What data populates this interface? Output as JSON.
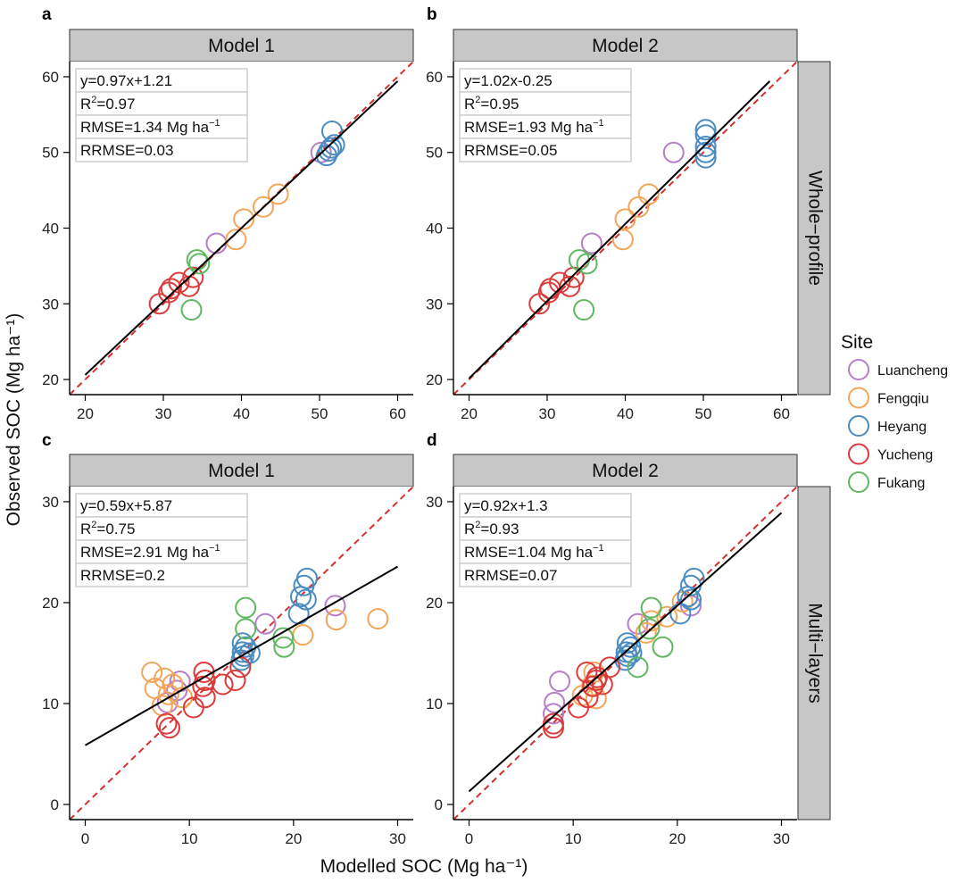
{
  "figure": {
    "x_title": "Modelled SOC (Mg ha⁻¹)",
    "y_title": "Observed SOC (Mg ha⁻¹)",
    "row_strips": [
      "Whole−profile",
      "Multi−layers"
    ]
  },
  "legend": {
    "title": "Site",
    "items": [
      {
        "label": "Luancheng",
        "color": "#b77dc9"
      },
      {
        "label": "Fengqiu",
        "color": "#f2a65a"
      },
      {
        "label": "Heyang",
        "color": "#4a8bc2"
      },
      {
        "label": "Yucheng",
        "color": "#dc3b3b"
      },
      {
        "label": "Fukang",
        "color": "#5fb85f"
      }
    ]
  },
  "chart_data": [
    {
      "type": "scatter",
      "panel_label": "a",
      "strip": "Model 1",
      "xlim": [
        18,
        62
      ],
      "ylim": [
        18,
        62
      ],
      "xticks": [
        20,
        30,
        40,
        50,
        60
      ],
      "yticks": [
        20,
        30,
        40,
        50,
        60
      ],
      "fit": {
        "slope": 0.97,
        "intercept": 1.21,
        "x_range": [
          20,
          60
        ]
      },
      "stats": {
        "eq": "y=0.97x+1.21",
        "r2": "0.97",
        "rmse": "1.34 Mg ha",
        "rrmse": "RRMSE=0.03"
      },
      "points": [
        {
          "site": "Luancheng",
          "x": 50.2,
          "y": 50.0
        },
        {
          "site": "Luancheng",
          "x": 36.8,
          "y": 38.0
        },
        {
          "site": "Fengqiu",
          "x": 39.3,
          "y": 38.5
        },
        {
          "site": "Fengqiu",
          "x": 40.3,
          "y": 41.2
        },
        {
          "site": "Fengqiu",
          "x": 42.8,
          "y": 42.8
        },
        {
          "site": "Fengqiu",
          "x": 44.7,
          "y": 44.5
        },
        {
          "site": "Heyang",
          "x": 51.6,
          "y": 52.8
        },
        {
          "site": "Heyang",
          "x": 51.9,
          "y": 51.0
        },
        {
          "site": "Heyang",
          "x": 51.5,
          "y": 50.6
        },
        {
          "site": "Heyang",
          "x": 50.9,
          "y": 49.6
        },
        {
          "site": "Heyang",
          "x": 51.2,
          "y": 50.2
        },
        {
          "site": "Yucheng",
          "x": 29.5,
          "y": 30.0
        },
        {
          "site": "Yucheng",
          "x": 30.7,
          "y": 31.5
        },
        {
          "site": "Yucheng",
          "x": 31.0,
          "y": 32.0
        },
        {
          "site": "Yucheng",
          "x": 32.0,
          "y": 32.8
        },
        {
          "site": "Yucheng",
          "x": 33.3,
          "y": 32.3
        },
        {
          "site": "Yucheng",
          "x": 33.8,
          "y": 33.5
        },
        {
          "site": "Fukang",
          "x": 34.3,
          "y": 35.8
        },
        {
          "site": "Fukang",
          "x": 34.6,
          "y": 35.3
        },
        {
          "site": "Fukang",
          "x": 33.6,
          "y": 29.2
        }
      ]
    },
    {
      "type": "scatter",
      "panel_label": "b",
      "strip": "Model 2",
      "xlim": [
        18,
        62
      ],
      "ylim": [
        18,
        62
      ],
      "xticks": [
        20,
        30,
        40,
        50,
        60
      ],
      "yticks": [
        20,
        30,
        40,
        50,
        60
      ],
      "fit": {
        "slope": 1.02,
        "intercept": -0.25,
        "x_range": [
          20,
          58.5
        ]
      },
      "stats": {
        "eq": "y=1.02x-0.25",
        "r2": "0.95",
        "rmse": "1.93 Mg ha",
        "rrmse": "RRMSE=0.05"
      },
      "points": [
        {
          "site": "Luancheng",
          "x": 46.2,
          "y": 50.0
        },
        {
          "site": "Luancheng",
          "x": 35.7,
          "y": 38.0
        },
        {
          "site": "Fengqiu",
          "x": 39.7,
          "y": 38.5
        },
        {
          "site": "Fengqiu",
          "x": 40.0,
          "y": 41.2
        },
        {
          "site": "Fengqiu",
          "x": 41.7,
          "y": 42.8
        },
        {
          "site": "Fengqiu",
          "x": 43.0,
          "y": 44.5
        },
        {
          "site": "Heyang",
          "x": 50.3,
          "y": 53.0
        },
        {
          "site": "Heyang",
          "x": 50.3,
          "y": 52.3
        },
        {
          "site": "Heyang",
          "x": 50.3,
          "y": 50.8
        },
        {
          "site": "Heyang",
          "x": 50.3,
          "y": 50.0
        },
        {
          "site": "Heyang",
          "x": 50.3,
          "y": 49.3
        },
        {
          "site": "Yucheng",
          "x": 29.0,
          "y": 30.0
        },
        {
          "site": "Yucheng",
          "x": 30.2,
          "y": 31.5
        },
        {
          "site": "Yucheng",
          "x": 30.4,
          "y": 32.0
        },
        {
          "site": "Yucheng",
          "x": 31.6,
          "y": 32.8
        },
        {
          "site": "Yucheng",
          "x": 32.9,
          "y": 32.3
        },
        {
          "site": "Yucheng",
          "x": 33.4,
          "y": 33.5
        },
        {
          "site": "Fukang",
          "x": 34.1,
          "y": 35.8
        },
        {
          "site": "Fukang",
          "x": 35.1,
          "y": 35.3
        },
        {
          "site": "Fukang",
          "x": 34.7,
          "y": 29.2
        }
      ]
    },
    {
      "type": "scatter",
      "panel_label": "c",
      "strip": "Model 1",
      "xlim": [
        -1.5,
        31.5
      ],
      "ylim": [
        -1.5,
        31.5
      ],
      "xticks": [
        0,
        10,
        20,
        30
      ],
      "yticks": [
        0,
        10,
        20,
        30
      ],
      "fit": {
        "slope": 0.59,
        "intercept": 5.87,
        "x_range": [
          0,
          30
        ]
      },
      "stats": {
        "eq": "y=0.59x+5.87",
        "r2": "0.75",
        "rmse": "2.91 Mg ha",
        "rrmse": "RRMSE=0.2"
      },
      "points": [
        {
          "site": "Luancheng",
          "x": 24.0,
          "y": 19.7
        },
        {
          "site": "Luancheng",
          "x": 17.3,
          "y": 17.9
        },
        {
          "site": "Luancheng",
          "x": 9.1,
          "y": 12.2
        },
        {
          "site": "Luancheng",
          "x": 7.9,
          "y": 10.1
        },
        {
          "site": "Luancheng",
          "x": 8.8,
          "y": 11.3
        },
        {
          "site": "Fengqiu",
          "x": 28.1,
          "y": 18.4
        },
        {
          "site": "Fengqiu",
          "x": 24.1,
          "y": 18.3
        },
        {
          "site": "Fengqiu",
          "x": 20.9,
          "y": 16.8
        },
        {
          "site": "Fengqiu",
          "x": 6.4,
          "y": 13.1
        },
        {
          "site": "Fengqiu",
          "x": 7.6,
          "y": 12.5
        },
        {
          "site": "Fengqiu",
          "x": 6.7,
          "y": 11.5
        },
        {
          "site": "Fengqiu",
          "x": 8.4,
          "y": 11.9
        },
        {
          "site": "Fengqiu",
          "x": 8.0,
          "y": 10.9
        },
        {
          "site": "Fengqiu",
          "x": 9.3,
          "y": 10.6
        },
        {
          "site": "Fengqiu",
          "x": 7.4,
          "y": 9.8
        },
        {
          "site": "Heyang",
          "x": 21.3,
          "y": 22.4
        },
        {
          "site": "Heyang",
          "x": 21.0,
          "y": 21.7
        },
        {
          "site": "Heyang",
          "x": 20.7,
          "y": 20.6
        },
        {
          "site": "Heyang",
          "x": 21.2,
          "y": 20.3
        },
        {
          "site": "Heyang",
          "x": 20.5,
          "y": 18.9
        },
        {
          "site": "Heyang",
          "x": 15.1,
          "y": 16.0
        },
        {
          "site": "Heyang",
          "x": 15.4,
          "y": 15.6
        },
        {
          "site": "Heyang",
          "x": 15.1,
          "y": 15.1
        },
        {
          "site": "Heyang",
          "x": 15.8,
          "y": 15.0
        },
        {
          "site": "Heyang",
          "x": 15.2,
          "y": 14.7
        },
        {
          "site": "Heyang",
          "x": 15.0,
          "y": 14.3
        },
        {
          "site": "Yucheng",
          "x": 11.4,
          "y": 13.1
        },
        {
          "site": "Yucheng",
          "x": 11.5,
          "y": 12.3
        },
        {
          "site": "Yucheng",
          "x": 11.3,
          "y": 11.7
        },
        {
          "site": "Yucheng",
          "x": 13.2,
          "y": 11.9
        },
        {
          "site": "Yucheng",
          "x": 14.4,
          "y": 12.3
        },
        {
          "site": "Yucheng",
          "x": 11.5,
          "y": 10.6
        },
        {
          "site": "Yucheng",
          "x": 10.4,
          "y": 9.6
        },
        {
          "site": "Yucheng",
          "x": 7.8,
          "y": 8.0
        },
        {
          "site": "Yucheng",
          "x": 8.1,
          "y": 7.6
        },
        {
          "site": "Yucheng",
          "x": 14.9,
          "y": 13.6
        },
        {
          "site": "Fukang",
          "x": 15.4,
          "y": 19.5
        },
        {
          "site": "Fukang",
          "x": 15.4,
          "y": 17.4
        },
        {
          "site": "Fukang",
          "x": 19.0,
          "y": 16.5
        },
        {
          "site": "Fukang",
          "x": 19.1,
          "y": 15.6
        }
      ]
    },
    {
      "type": "scatter",
      "panel_label": "d",
      "strip": "Model 2",
      "xlim": [
        -1.5,
        31.5
      ],
      "ylim": [
        -1.5,
        31.5
      ],
      "xticks": [
        0,
        10,
        20,
        30
      ],
      "yticks": [
        0,
        10,
        20,
        30
      ],
      "fit": {
        "slope": 0.92,
        "intercept": 1.3,
        "x_range": [
          0,
          30
        ]
      },
      "stats": {
        "eq": "y=0.92x+1.3",
        "r2": "0.93",
        "rmse": "1.04 Mg ha",
        "rrmse": "RRMSE=0.07"
      },
      "points": [
        {
          "site": "Luancheng",
          "x": 21.3,
          "y": 19.7
        },
        {
          "site": "Luancheng",
          "x": 16.2,
          "y": 17.9
        },
        {
          "site": "Luancheng",
          "x": 8.7,
          "y": 12.2
        },
        {
          "site": "Luancheng",
          "x": 8.2,
          "y": 10.1
        },
        {
          "site": "Luancheng",
          "x": 8.1,
          "y": 9.0
        },
        {
          "site": "Fengqiu",
          "x": 20.5,
          "y": 20.1
        },
        {
          "site": "Fengqiu",
          "x": 19.0,
          "y": 18.6
        },
        {
          "site": "Fengqiu",
          "x": 17.5,
          "y": 18.2
        },
        {
          "site": "Fengqiu",
          "x": 17.0,
          "y": 17.0
        },
        {
          "site": "Fengqiu",
          "x": 12.0,
          "y": 13.1
        },
        {
          "site": "Fengqiu",
          "x": 11.8,
          "y": 11.8
        },
        {
          "site": "Fengqiu",
          "x": 10.9,
          "y": 10.8
        },
        {
          "site": "Fengqiu",
          "x": 12.2,
          "y": 10.5
        },
        {
          "site": "Heyang",
          "x": 21.6,
          "y": 22.4
        },
        {
          "site": "Heyang",
          "x": 21.3,
          "y": 21.7
        },
        {
          "site": "Heyang",
          "x": 21.0,
          "y": 20.6
        },
        {
          "site": "Heyang",
          "x": 21.3,
          "y": 20.3
        },
        {
          "site": "Heyang",
          "x": 20.3,
          "y": 18.9
        },
        {
          "site": "Heyang",
          "x": 15.2,
          "y": 16.0
        },
        {
          "site": "Heyang",
          "x": 15.5,
          "y": 15.6
        },
        {
          "site": "Heyang",
          "x": 15.1,
          "y": 15.1
        },
        {
          "site": "Heyang",
          "x": 15.6,
          "y": 15.0
        },
        {
          "site": "Heyang",
          "x": 15.2,
          "y": 14.7
        },
        {
          "site": "Heyang",
          "x": 15.0,
          "y": 14.3
        },
        {
          "site": "Yucheng",
          "x": 11.3,
          "y": 13.1
        },
        {
          "site": "Yucheng",
          "x": 12.2,
          "y": 12.3
        },
        {
          "site": "Yucheng",
          "x": 11.9,
          "y": 11.7
        },
        {
          "site": "Yucheng",
          "x": 12.8,
          "y": 11.9
        },
        {
          "site": "Yucheng",
          "x": 13.5,
          "y": 13.6
        },
        {
          "site": "Yucheng",
          "x": 11.4,
          "y": 10.6
        },
        {
          "site": "Yucheng",
          "x": 10.5,
          "y": 9.6
        },
        {
          "site": "Yucheng",
          "x": 8.1,
          "y": 8.0
        },
        {
          "site": "Yucheng",
          "x": 8.1,
          "y": 7.6
        },
        {
          "site": "Yucheng",
          "x": 12.3,
          "y": 12.6
        },
        {
          "site": "Fukang",
          "x": 17.5,
          "y": 19.5
        },
        {
          "site": "Fukang",
          "x": 17.3,
          "y": 17.4
        },
        {
          "site": "Fukang",
          "x": 18.6,
          "y": 15.6
        },
        {
          "site": "Fukang",
          "x": 16.2,
          "y": 13.6
        }
      ]
    }
  ]
}
